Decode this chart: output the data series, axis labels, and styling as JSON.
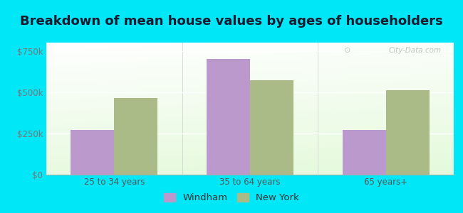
{
  "title": "Breakdown of mean house values by ages of householders",
  "categories": [
    "25 to 34 years",
    "35 to 64 years",
    "65 years+"
  ],
  "windham_values": [
    270000,
    700000,
    270000
  ],
  "newyork_values": [
    465000,
    570000,
    510000
  ],
  "windham_color": "#bb99cc",
  "newyork_color": "#aabb88",
  "ylim": [
    0,
    800000
  ],
  "yticks": [
    0,
    250000,
    500000,
    750000
  ],
  "ytick_labels": [
    "$0",
    "$250k",
    "$500k",
    "$750k"
  ],
  "legend_labels": [
    "Windham",
    "New York"
  ],
  "background_outer": "#00e8f8",
  "title_fontsize": 13,
  "tick_fontsize": 8.5,
  "legend_fontsize": 9.5,
  "bar_width": 0.32,
  "watermark_text": "City-Data.com"
}
